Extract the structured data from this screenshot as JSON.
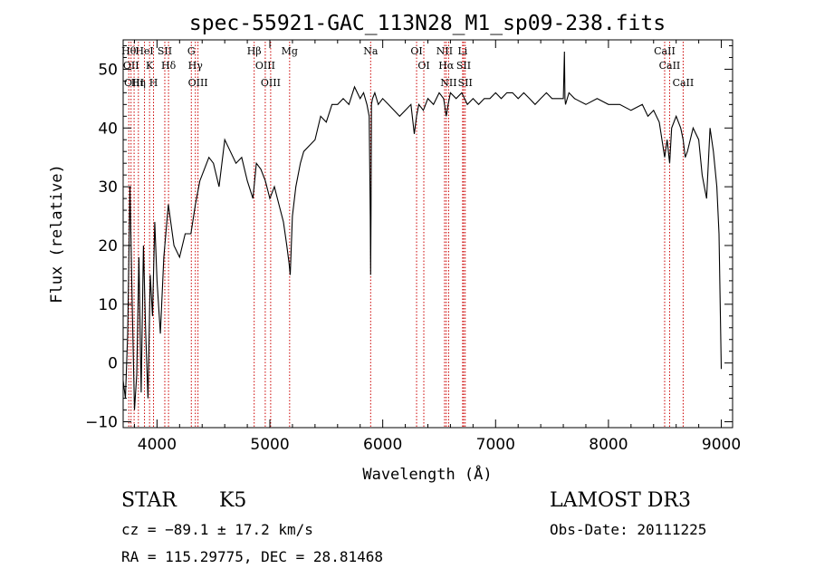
{
  "chart_data": {
    "type": "line",
    "title": "spec-55921-GAC_113N28_M1_sp09-238.fits",
    "xlabel": "Wavelength (Å)",
    "ylabel": "Flux (relative)",
    "xlim": [
      3700,
      9100
    ],
    "ylim": [
      -11,
      55
    ],
    "x_ticks": [
      4000,
      5000,
      6000,
      7000,
      8000,
      9000
    ],
    "y_ticks": [
      -10,
      0,
      10,
      20,
      30,
      40,
      50
    ],
    "grid": false,
    "series": [
      {
        "name": "flux",
        "x": [
          3700,
          3720,
          3740,
          3760,
          3780,
          3800,
          3820,
          3840,
          3860,
          3880,
          3900,
          3920,
          3940,
          3960,
          3980,
          4000,
          4030,
          4060,
          4100,
          4150,
          4200,
          4250,
          4300,
          4340,
          4380,
          4420,
          4460,
          4500,
          4550,
          4600,
          4650,
          4700,
          4750,
          4800,
          4850,
          4880,
          4920,
          4960,
          5000,
          5040,
          5080,
          5120,
          5150,
          5170,
          5180,
          5200,
          5230,
          5270,
          5300,
          5350,
          5400,
          5450,
          5500,
          5550,
          5600,
          5650,
          5700,
          5750,
          5800,
          5830,
          5860,
          5880,
          5890,
          5893,
          5896,
          5900,
          5910,
          5930,
          5960,
          6000,
          6050,
          6100,
          6150,
          6200,
          6250,
          6280,
          6300,
          6320,
          6360,
          6400,
          6450,
          6500,
          6540,
          6563,
          6580,
          6600,
          6650,
          6700,
          6750,
          6800,
          6850,
          6900,
          6950,
          7000,
          7050,
          7100,
          7150,
          7200,
          7250,
          7300,
          7350,
          7400,
          7450,
          7500,
          7550,
          7600,
          7610,
          7615,
          7620,
          7650,
          7700,
          7800,
          7900,
          8000,
          8100,
          8200,
          8300,
          8350,
          8400,
          8450,
          8498,
          8520,
          8542,
          8560,
          8600,
          8640,
          8662,
          8680,
          8700,
          8750,
          8800,
          8830,
          8850,
          8870,
          8900,
          8930,
          8960,
          8980,
          9000
        ],
        "values": [
          -3,
          -6,
          5,
          30,
          10,
          -8,
          -2,
          18,
          -5,
          20,
          5,
          -6,
          15,
          8,
          24,
          14,
          5,
          18,
          27,
          20,
          18,
          22,
          22,
          27,
          31,
          33,
          35,
          34,
          30,
          38,
          36,
          34,
          35,
          31,
          28,
          34,
          33,
          31,
          28,
          30,
          27,
          24,
          20,
          17,
          15,
          25,
          30,
          34,
          36,
          37,
          38,
          42,
          41,
          44,
          44,
          45,
          44,
          47,
          45,
          46,
          44,
          42,
          25,
          15,
          25,
          44,
          45,
          46,
          44,
          45,
          44,
          43,
          42,
          43,
          44,
          39,
          42,
          44,
          43,
          45,
          44,
          46,
          45,
          42,
          44,
          46,
          45,
          46,
          44,
          45,
          44,
          45,
          45,
          46,
          45,
          46,
          46,
          45,
          46,
          45,
          44,
          45,
          46,
          45,
          45,
          45,
          53,
          45,
          44,
          46,
          45,
          44,
          45,
          44,
          44,
          43,
          44,
          42,
          43,
          41,
          35,
          38,
          34,
          40,
          42,
          40,
          38,
          35,
          36,
          40,
          38,
          32,
          30,
          28,
          40,
          36,
          30,
          22,
          -1
        ]
      }
    ],
    "lines": [
      {
        "x": 3750,
        "label": "Hθ"
      },
      {
        "x": 3770,
        "label": "OII"
      },
      {
        "x": 3797,
        "label": "OIII"
      },
      {
        "x": 3835,
        "label": "Hη"
      },
      {
        "x": 3889,
        "label": "HeI"
      },
      {
        "x": 3934,
        "label": "K"
      },
      {
        "x": 3969,
        "label": "H"
      },
      {
        "x": 4069,
        "label": "SII"
      },
      {
        "x": 4102,
        "label": "Hδ"
      },
      {
        "x": 4304,
        "label": "G"
      },
      {
        "x": 4340,
        "label": "Hγ"
      },
      {
        "x": 4363,
        "label": "OIII"
      },
      {
        "x": 4861,
        "label": "Hβ"
      },
      {
        "x": 4959,
        "label": "OIII"
      },
      {
        "x": 5007,
        "label": "OIII"
      },
      {
        "x": 5175,
        "label": "Mg"
      },
      {
        "x": 5893,
        "label": "Na"
      },
      {
        "x": 6300,
        "label": "OI"
      },
      {
        "x": 6364,
        "label": "OI"
      },
      {
        "x": 6548,
        "label": "NII"
      },
      {
        "x": 6563,
        "label": "Hα"
      },
      {
        "x": 6584,
        "label": "NII"
      },
      {
        "x": 6708,
        "label": "Li"
      },
      {
        "x": 6717,
        "label": "SII"
      },
      {
        "x": 6731,
        "label": "SII"
      },
      {
        "x": 8498,
        "label": "CaII"
      },
      {
        "x": 8542,
        "label": "CaII"
      },
      {
        "x": 8662,
        "label": "CaII"
      }
    ]
  },
  "info": {
    "object_class": "STAR",
    "subclass": "K5",
    "survey": "LAMOST DR3",
    "cz": "cz = −89.1 ± 17.2 km/s",
    "obs_date": "Obs-Date: 20111225",
    "coords": "RA = 115.29775, DEC =  28.81468"
  },
  "colors": {
    "axis": "#000000",
    "spectrum": "#000000",
    "line_marker": "#cc0000",
    "background": "#ffffff"
  }
}
